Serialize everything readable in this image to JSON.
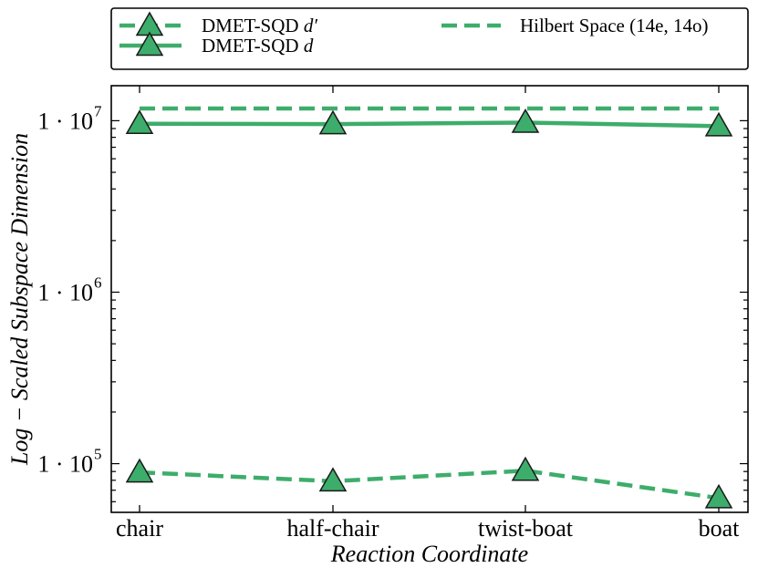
{
  "chart_data": {
    "type": "line",
    "yscale": "log",
    "ylim": [
      52000,
      16000000
    ],
    "categories": [
      "chair",
      "half-chair",
      "twist-boat",
      "boat"
    ],
    "xlabel": "Reaction Coordinate",
    "ylabel": "Log − Scaled Subspace Dimension",
    "yticks": [
      {
        "value": 100000,
        "mantissa": "1 · 10",
        "exp": "5"
      },
      {
        "value": 1000000,
        "mantissa": "1 · 10",
        "exp": "6"
      },
      {
        "value": 10000000,
        "mantissa": "1 · 10",
        "exp": "7"
      }
    ],
    "series": [
      {
        "name": "DMET-SQD d′",
        "style": "dashed",
        "marker": "triangle",
        "values": [
          89000,
          79000,
          91000,
          63000
        ]
      },
      {
        "name": "DMET-SQD d",
        "style": "solid",
        "marker": "triangle",
        "values": [
          9600000,
          9550000,
          9750000,
          9300000
        ]
      },
      {
        "name": "Hilbert Space (14e, 14o)",
        "style": "dashed",
        "marker": "none",
        "values": [
          11778624,
          11778624,
          11778624,
          11778624
        ]
      }
    ],
    "legend": {
      "placement": "top, outside",
      "entries": [
        {
          "base": "DMET-SQD ",
          "italic": "d′"
        },
        {
          "base": "DMET-SQD ",
          "italic": "d"
        },
        {
          "base": "Hilbert Space (14e, 14o)",
          "italic": ""
        }
      ]
    },
    "grid": false,
    "colors": {
      "series": "#3dad6b",
      "marker_edge": "#1a1a1a",
      "axis": "#000000"
    }
  }
}
